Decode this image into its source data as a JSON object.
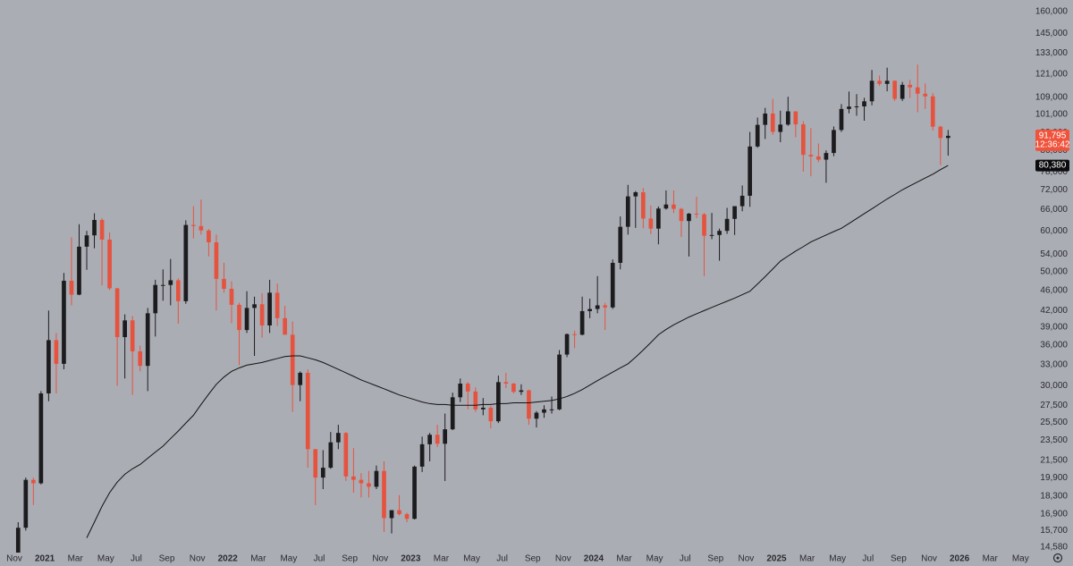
{
  "chart_data": {
    "type": "candlestick",
    "log_scale": true,
    "up_color": "#1c1c1e",
    "down_color": "#e5533f",
    "background": "#abadb5",
    "xlim": [
      -0.94,
      66.51
    ],
    "ylim": [
      14400,
      168500
    ],
    "xticks": [
      {
        "value": 0,
        "label": "Nov"
      },
      {
        "value": 2,
        "label": "2021"
      },
      {
        "value": 4,
        "label": "Mar"
      },
      {
        "value": 6,
        "label": "May"
      },
      {
        "value": 8,
        "label": "Jul"
      },
      {
        "value": 10,
        "label": "Sep"
      },
      {
        "value": 12,
        "label": "Nov"
      },
      {
        "value": 14,
        "label": "2022"
      },
      {
        "value": 16,
        "label": "Mar"
      },
      {
        "value": 18,
        "label": "May"
      },
      {
        "value": 20,
        "label": "Jul"
      },
      {
        "value": 22,
        "label": "Sep"
      },
      {
        "value": 24,
        "label": "Nov"
      },
      {
        "value": 26,
        "label": "2023"
      },
      {
        "value": 28,
        "label": "Mar"
      },
      {
        "value": 30,
        "label": "May"
      },
      {
        "value": 32,
        "label": "Jul"
      },
      {
        "value": 34,
        "label": "Sep"
      },
      {
        "value": 36,
        "label": "Nov"
      },
      {
        "value": 38,
        "label": "2024"
      },
      {
        "value": 40,
        "label": "Mar"
      },
      {
        "value": 42,
        "label": "May"
      },
      {
        "value": 44,
        "label": "Jul"
      },
      {
        "value": 46,
        "label": "Sep"
      },
      {
        "value": 48,
        "label": "Nov"
      },
      {
        "value": 50,
        "label": "2025"
      },
      {
        "value": 52,
        "label": "Mar"
      },
      {
        "value": 54,
        "label": "May"
      },
      {
        "value": 56,
        "label": "Jul"
      },
      {
        "value": 58,
        "label": "Sep"
      },
      {
        "value": 60,
        "label": "Nov"
      },
      {
        "value": 62,
        "label": "2026"
      },
      {
        "value": 64,
        "label": "Mar"
      },
      {
        "value": 66,
        "label": "May"
      }
    ],
    "yticks": [
      {
        "value": 14580,
        "label": "14,580"
      },
      {
        "value": 15700,
        "label": "15,700"
      },
      {
        "value": 16900,
        "label": "16,900"
      },
      {
        "value": 18300,
        "label": "18,300"
      },
      {
        "value": 19900,
        "label": "19,900"
      },
      {
        "value": 21500,
        "label": "21,500"
      },
      {
        "value": 23500,
        "label": "23,500"
      },
      {
        "value": 25500,
        "label": "25,500"
      },
      {
        "value": 27500,
        "label": "27,500"
      },
      {
        "value": 30000,
        "label": "30,000"
      },
      {
        "value": 33000,
        "label": "33,000"
      },
      {
        "value": 36000,
        "label": "36,000"
      },
      {
        "value": 39000,
        "label": "39,000"
      },
      {
        "value": 42000,
        "label": "42,000"
      },
      {
        "value": 46000,
        "label": "46,000"
      },
      {
        "value": 50000,
        "label": "50,000"
      },
      {
        "value": 54000,
        "label": "54,000"
      },
      {
        "value": 60000,
        "label": "60,000"
      },
      {
        "value": 66000,
        "label": "66,000"
      },
      {
        "value": 72000,
        "label": "72,000"
      },
      {
        "value": 78000,
        "label": "78,000"
      },
      {
        "value": 86000,
        "label": "86,000"
      },
      {
        "value": 93000,
        "label": "93,000"
      },
      {
        "value": 101000,
        "label": "101,000"
      },
      {
        "value": 109000,
        "label": "109,000"
      },
      {
        "value": 121000,
        "label": "121,000"
      },
      {
        "value": 133000,
        "label": "133,000"
      },
      {
        "value": 145000,
        "label": "145,000"
      },
      {
        "value": 160000,
        "label": "160,000"
      }
    ],
    "x": [
      0.25,
      0.75,
      1.25,
      1.75,
      2.25,
      2.75,
      3.25,
      3.75,
      4.25,
      4.75,
      5.25,
      5.75,
      6.25,
      6.75,
      7.25,
      7.75,
      8.25,
      8.75,
      9.25,
      9.75,
      10.25,
      10.75,
      11.25,
      11.75,
      12.25,
      12.75,
      13.25,
      13.75,
      14.25,
      14.75,
      15.25,
      15.75,
      16.25,
      16.75,
      17.25,
      17.75,
      18.25,
      18.75,
      19.25,
      19.75,
      20.25,
      20.75,
      21.25,
      21.75,
      22.25,
      22.75,
      23.25,
      23.75,
      24.25,
      24.75,
      25.25,
      25.75,
      26.25,
      26.75,
      27.25,
      27.75,
      28.25,
      28.75,
      29.25,
      29.75,
      30.25,
      30.75,
      31.25,
      31.75,
      32.25,
      32.75,
      33.25,
      33.75,
      34.25,
      34.75,
      35.25,
      35.75,
      36.25,
      36.75,
      37.25,
      37.75,
      38.25,
      38.75,
      39.25,
      39.75,
      40.25,
      40.75,
      41.25,
      41.75,
      42.25,
      42.75,
      43.25,
      43.75,
      44.25,
      44.75,
      45.25,
      45.75,
      46.25,
      46.75,
      47.25,
      47.75,
      48.25,
      48.75,
      49.25,
      49.75,
      50.25,
      50.75,
      51.25,
      51.75,
      52.25,
      52.75,
      53.25,
      53.75,
      54.25,
      54.75,
      55.25,
      55.75,
      56.25,
      56.75,
      57.25,
      57.75,
      58.25,
      58.75,
      59.25,
      59.75,
      60.25,
      60.75,
      61.25
    ],
    "ohlc": [
      [
        13800,
        16300,
        13200,
        15900
      ],
      [
        15900,
        19900,
        15700,
        19700
      ],
      [
        19700,
        19900,
        17600,
        19400
      ],
      [
        19400,
        29300,
        19300,
        29000
      ],
      [
        29000,
        42000,
        28000,
        36800
      ],
      [
        36800,
        38000,
        29000,
        33100
      ],
      [
        33100,
        49700,
        32300,
        48000
      ],
      [
        48000,
        58300,
        43000,
        45100
      ],
      [
        45100,
        61800,
        45000,
        55900
      ],
      [
        55900,
        60000,
        50400,
        58800
      ],
      [
        58800,
        64900,
        55500,
        63000
      ],
      [
        63000,
        63500,
        47000,
        57700
      ],
      [
        57700,
        59600,
        46000,
        46400
      ],
      [
        46400,
        46500,
        30000,
        37300
      ],
      [
        37300,
        41300,
        31000,
        40200
      ],
      [
        40200,
        41000,
        28800,
        35000
      ],
      [
        35000,
        35900,
        32000,
        32800
      ],
      [
        32800,
        42500,
        29300,
        41500
      ],
      [
        41500,
        48200,
        37400,
        47100
      ],
      [
        47100,
        50500,
        43900,
        47100
      ],
      [
        47100,
        52900,
        43000,
        48100
      ],
      [
        48100,
        48500,
        39600,
        43800
      ],
      [
        43800,
        62900,
        43300,
        61600
      ],
      [
        61600,
        67000,
        58000,
        61300
      ],
      [
        61300,
        69000,
        59000,
        60100
      ],
      [
        60100,
        60500,
        53500,
        57000
      ],
      [
        57000,
        59000,
        42000,
        48400
      ],
      [
        48400,
        52000,
        45500,
        46300
      ],
      [
        46300,
        47900,
        39700,
        43100
      ],
      [
        43100,
        43500,
        32900,
        38500
      ],
      [
        38500,
        45800,
        38000,
        42500
      ],
      [
        42500,
        44700,
        34300,
        43200
      ],
      [
        43200,
        45400,
        37200,
        39300
      ],
      [
        39300,
        48200,
        38000,
        45500
      ],
      [
        45500,
        47400,
        39200,
        40600
      ],
      [
        40600,
        42900,
        37700,
        37700
      ],
      [
        37700,
        40000,
        26700,
        30100
      ],
      [
        30100,
        32000,
        28000,
        31800
      ],
      [
        31800,
        32300,
        20800,
        22600
      ],
      [
        22600,
        22600,
        17600,
        19900
      ],
      [
        19900,
        22500,
        18900,
        20800
      ],
      [
        20800,
        24400,
        20700,
        23300
      ],
      [
        23300,
        25200,
        22600,
        24300
      ],
      [
        24300,
        24400,
        19600,
        20000
      ],
      [
        20000,
        22700,
        18600,
        19700
      ],
      [
        19700,
        20300,
        18200,
        19400
      ],
      [
        19400,
        20500,
        18200,
        19100
      ],
      [
        19100,
        21000,
        18900,
        20500
      ],
      [
        20500,
        21400,
        15600,
        16600
      ],
      [
        16600,
        17200,
        15500,
        17200
      ],
      [
        17200,
        18400,
        16800,
        16900
      ],
      [
        16900,
        17000,
        16300,
        16550
      ],
      [
        16550,
        21000,
        16500,
        20900
      ],
      [
        20900,
        23900,
        20400,
        23100
      ],
      [
        23100,
        24300,
        21400,
        24100
      ],
      [
        24100,
        25200,
        22800,
        23150
      ],
      [
        23150,
        26500,
        19600,
        24700
      ],
      [
        24700,
        29100,
        24600,
        28500
      ],
      [
        28500,
        31000,
        27900,
        30300
      ],
      [
        30300,
        30500,
        27000,
        29250
      ],
      [
        29250,
        29800,
        26700,
        27000
      ],
      [
        27000,
        28400,
        26300,
        27200
      ],
      [
        27200,
        27400,
        24800,
        25600
      ],
      [
        25600,
        31400,
        25400,
        30500
      ],
      [
        30500,
        31800,
        29700,
        30300
      ],
      [
        30300,
        30400,
        29000,
        29200
      ],
      [
        29200,
        30200,
        28800,
        29400
      ],
      [
        29400,
        29500,
        25200,
        25900
      ],
      [
        25900,
        26800,
        24900,
        26600
      ],
      [
        26600,
        27500,
        26000,
        27000
      ],
      [
        27000,
        28600,
        26500,
        27000
      ],
      [
        27000,
        35200,
        26900,
        34500
      ],
      [
        34500,
        37900,
        34100,
        37800
      ],
      [
        37800,
        38400,
        35500,
        37700
      ],
      [
        37700,
        44700,
        37600,
        41900
      ],
      [
        41900,
        44300,
        40600,
        42300
      ],
      [
        42300,
        49000,
        41500,
        43000
      ],
      [
        43000,
        43500,
        38500,
        42600
      ],
      [
        42600,
        52800,
        42300,
        52000
      ],
      [
        52000,
        64000,
        50500,
        61100
      ],
      [
        61100,
        73700,
        59000,
        70000
      ],
      [
        70000,
        71700,
        60800,
        71300
      ],
      [
        71300,
        72700,
        60700,
        63400
      ],
      [
        63400,
        67200,
        59100,
        60600
      ],
      [
        60600,
        66900,
        56500,
        66300
      ],
      [
        66300,
        71900,
        66000,
        67500
      ],
      [
        67500,
        71900,
        65000,
        66200
      ],
      [
        66200,
        66500,
        58400,
        62700
      ],
      [
        62700,
        65000,
        53500,
        64800
      ],
      [
        64800,
        69900,
        63500,
        64600
      ],
      [
        64600,
        65000,
        49000,
        58700
      ],
      [
        58700,
        65000,
        57800,
        58900
      ],
      [
        58900,
        60600,
        52500,
        60000
      ],
      [
        60000,
        66500,
        59200,
        63300
      ],
      [
        63300,
        67000,
        58900,
        67000
      ],
      [
        67000,
        73500,
        65500,
        70200
      ],
      [
        70200,
        93400,
        66800,
        87500
      ],
      [
        87500,
        99600,
        87000,
        96400
      ],
      [
        96400,
        104000,
        90500,
        101400
      ],
      [
        101400,
        108300,
        92200,
        93400
      ],
      [
        93400,
        102700,
        89200,
        96500
      ],
      [
        96500,
        109300,
        96000,
        102400
      ],
      [
        102400,
        102400,
        91200,
        96600
      ],
      [
        96600,
        98000,
        78200,
        84300
      ],
      [
        84300,
        95000,
        76600,
        83700
      ],
      [
        83700,
        88700,
        81600,
        82500
      ],
      [
        82500,
        86000,
        74400,
        85000
      ],
      [
        85000,
        95700,
        83800,
        94200
      ],
      [
        94200,
        105800,
        93400,
        103500
      ],
      [
        103500,
        111900,
        101500,
        104600
      ],
      [
        104600,
        110600,
        100400,
        104700
      ],
      [
        104700,
        108800,
        98200,
        107100
      ],
      [
        107100,
        123200,
        105200,
        117400
      ],
      [
        117400,
        120200,
        114700,
        115800
      ],
      [
        115800,
        124500,
        112000,
        117400
      ],
      [
        117400,
        117600,
        107300,
        108300
      ],
      [
        108300,
        116800,
        107300,
        115300
      ],
      [
        115300,
        117900,
        108700,
        114000
      ],
      [
        114000,
        126200,
        102000,
        110800
      ],
      [
        110800,
        116000,
        103500,
        109500
      ],
      [
        109500,
        111200,
        94000,
        95600
      ],
      [
        95600,
        96000,
        80500,
        90900
      ],
      [
        90900,
        94200,
        84000,
        91795
      ]
    ],
    "ma": {
      "color": "#111111",
      "values": [
        null,
        null,
        null,
        null,
        null,
        null,
        null,
        null,
        null,
        15200,
        16300,
        17500,
        18600,
        19500,
        20200,
        20700,
        21100,
        21700,
        22300,
        22900,
        23700,
        24500,
        25400,
        26300,
        27600,
        28900,
        30200,
        31200,
        32000,
        32500,
        32900,
        33100,
        33300,
        33600,
        33900,
        34200,
        34300,
        34300,
        34000,
        33700,
        33300,
        32800,
        32300,
        31800,
        31300,
        30800,
        30400,
        30000,
        29600,
        29200,
        28800,
        28500,
        28200,
        27900,
        27700,
        27600,
        27600,
        27500,
        27500,
        27500,
        27500,
        27600,
        27600,
        27700,
        27700,
        27800,
        27800,
        27800,
        27900,
        28000,
        28100,
        28300,
        28600,
        29000,
        29500,
        30100,
        30700,
        31300,
        31900,
        32500,
        33100,
        34100,
        35200,
        36400,
        37700,
        38600,
        39400,
        40100,
        40800,
        41400,
        42000,
        42600,
        43200,
        43800,
        44400,
        45100,
        45800,
        47300,
        48900,
        50600,
        52400,
        53600,
        54800,
        55900,
        57100,
        58000,
        58900,
        59800,
        60700,
        62000,
        63400,
        64800,
        66200,
        67700,
        69200,
        70600,
        72100,
        73400,
        74700,
        76000,
        77300,
        78900,
        80380
      ]
    },
    "last_price": {
      "value": 91795,
      "label": "91,795",
      "color": "#f0533c"
    },
    "countdown": "12:36:42",
    "ma_price": {
      "value": 80380,
      "label": "80,380",
      "color": "#0b0b0d"
    }
  }
}
